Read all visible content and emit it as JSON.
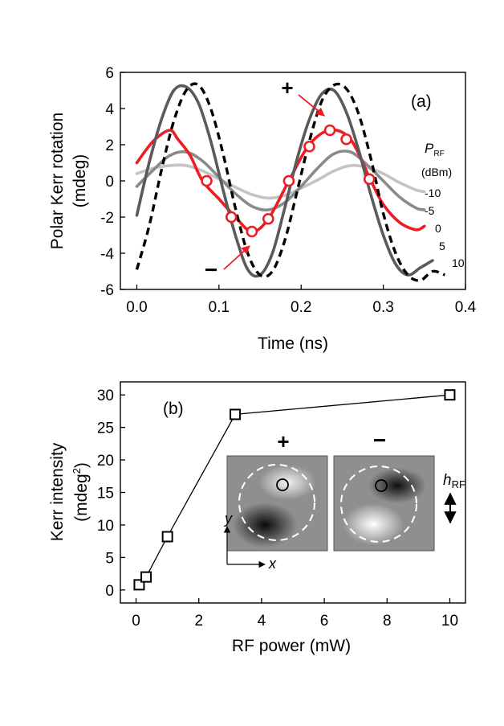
{
  "chart_data": [
    {
      "type": "line",
      "panel_label": "(a)",
      "xlabel": "Time (ns)",
      "ylabel_line1": "Polar Kerr rotation",
      "ylabel_line2": "(mdeg)",
      "xlim": [
        -0.02,
        0.4
      ],
      "ylim": [
        -6,
        6
      ],
      "xticks": [
        0.0,
        0.1,
        0.2,
        0.3,
        0.4
      ],
      "xtick_labels": [
        "0.0",
        "0.1",
        "0.2",
        "0.3",
        "0.4"
      ],
      "yticks": [
        -6,
        -4,
        -2,
        0,
        2,
        4,
        6
      ],
      "ytick_labels": [
        "-6",
        "-4",
        "-2",
        "0",
        "2",
        "4",
        "6"
      ],
      "legend_title_main": "P",
      "legend_title_sub": "RF",
      "legend_unit": "(dBm)",
      "series": [
        {
          "name": "-10",
          "color": "#c4c4c4",
          "style": "solid",
          "x": [
            0.0,
            0.02,
            0.04,
            0.06,
            0.08,
            0.1,
            0.12,
            0.14,
            0.16,
            0.18,
            0.2,
            0.22,
            0.24,
            0.26,
            0.28,
            0.3,
            0.32,
            0.34,
            0.35
          ],
          "y": [
            0.4,
            0.7,
            0.85,
            0.85,
            0.55,
            0.1,
            -0.35,
            -0.75,
            -0.95,
            -0.8,
            -0.4,
            0.05,
            0.55,
            0.85,
            0.75,
            0.4,
            -0.1,
            -0.5,
            -0.6
          ]
        },
        {
          "name": "-5",
          "color": "#8a8a8a",
          "style": "solid",
          "x": [
            0.0,
            0.02,
            0.04,
            0.06,
            0.08,
            0.1,
            0.12,
            0.14,
            0.16,
            0.18,
            0.2,
            0.22,
            0.24,
            0.26,
            0.28,
            0.3,
            0.32,
            0.34,
            0.35
          ],
          "y": [
            -0.3,
            0.6,
            1.4,
            1.6,
            1.1,
            0.2,
            -0.7,
            -1.4,
            -1.6,
            -1.2,
            -0.3,
            0.7,
            1.5,
            1.6,
            0.9,
            0.0,
            -0.9,
            -1.5,
            -1.6
          ]
        },
        {
          "name": "0",
          "color": "#ee1d23",
          "style": "solid",
          "markers": "open-circle",
          "x": [
            0.0,
            0.02,
            0.04,
            0.05,
            0.065,
            0.08,
            0.1,
            0.12,
            0.14,
            0.16,
            0.185,
            0.21,
            0.235,
            0.26,
            0.285,
            0.3,
            0.32,
            0.34,
            0.35
          ],
          "y": [
            1.0,
            2.2,
            2.8,
            2.3,
            1.4,
            0.0,
            -1.0,
            -2.0,
            -2.8,
            -2.1,
            0.0,
            2.0,
            2.8,
            2.3,
            0.0,
            -1.3,
            -2.3,
            -2.7,
            -2.5
          ],
          "marker_x": [
            0.085,
            0.115,
            0.14,
            0.16,
            0.185,
            0.21,
            0.235,
            0.255,
            0.283
          ],
          "marker_y": [
            0.0,
            -2.0,
            -2.8,
            -2.1,
            0.0,
            1.9,
            2.8,
            2.3,
            0.1
          ]
        },
        {
          "name": "5",
          "color": "#5a5a5a",
          "style": "solid",
          "x": [
            0.0,
            0.015,
            0.03,
            0.045,
            0.06,
            0.075,
            0.09,
            0.105,
            0.12,
            0.135,
            0.15,
            0.165,
            0.18,
            0.195,
            0.21,
            0.225,
            0.24,
            0.255,
            0.27,
            0.285,
            0.3,
            0.315,
            0.33,
            0.345,
            0.36
          ],
          "y": [
            -1.9,
            1.0,
            3.4,
            5.0,
            5.2,
            4.3,
            2.2,
            -0.5,
            -3.0,
            -4.9,
            -5.2,
            -4.0,
            -1.5,
            1.2,
            3.4,
            4.8,
            5.0,
            3.8,
            1.7,
            -0.8,
            -3.0,
            -4.6,
            -5.2,
            -4.8,
            -4.4
          ]
        },
        {
          "name": "10",
          "color": "#000000",
          "style": "dashed",
          "x": [
            0.0,
            0.015,
            0.03,
            0.045,
            0.06,
            0.075,
            0.09,
            0.105,
            0.12,
            0.135,
            0.15,
            0.165,
            0.18,
            0.195,
            0.21,
            0.225,
            0.24,
            0.255,
            0.27,
            0.285,
            0.3,
            0.315,
            0.33,
            0.345,
            0.36,
            0.375
          ],
          "y": [
            -4.9,
            -2.5,
            0.6,
            3.3,
            5.0,
            5.3,
            4.0,
            1.5,
            -1.5,
            -4.0,
            -5.2,
            -5.0,
            -3.3,
            -0.6,
            2.2,
            4.4,
            5.3,
            5.1,
            3.7,
            1.2,
            -1.8,
            -4.0,
            -5.2,
            -5.5,
            -5.0,
            -5.2
          ]
        }
      ],
      "annotations": [
        {
          "text": "+",
          "x": 0.224,
          "y": 5.1
        },
        {
          "text": "−",
          "x": 0.097,
          "y": -5.0
        }
      ],
      "arrows": [
        {
          "from": [
            0.247,
            5.0
          ],
          "to": [
            0.284,
            3.6
          ],
          "color": "#ee1d23"
        },
        {
          "from": [
            0.085,
            -4.6
          ],
          "to": [
            0.125,
            -3.3
          ],
          "color": "#ee1d23"
        }
      ]
    },
    {
      "type": "line",
      "panel_label": "(b)",
      "xlabel": "RF power (mW)",
      "ylabel_line1": "Kerr intensity",
      "ylabel_line2_main": "(mdeg",
      "ylabel_line2_sup": "2",
      "ylabel_line2_end": ")",
      "xlim": [
        -0.5,
        10.5
      ],
      "ylim": [
        -2,
        32
      ],
      "xticks": [
        0,
        2,
        4,
        6,
        8,
        10
      ],
      "xtick_labels": [
        "0",
        "2",
        "4",
        "6",
        "8",
        "10"
      ],
      "yticks": [
        0,
        5,
        10,
        15,
        20,
        25,
        30
      ],
      "ytick_labels": [
        "0",
        "5",
        "10",
        "15",
        "20",
        "25",
        "30"
      ],
      "series": [
        {
          "name": "Kerr intensity",
          "color": "#000000",
          "markers": "open-square",
          "x": [
            0.1,
            0.32,
            1.0,
            3.16,
            10.0
          ],
          "y": [
            0.8,
            2.0,
            8.2,
            27.0,
            30.0
          ]
        }
      ],
      "inset": {
        "plus_label": "+",
        "minus_label": "−",
        "axis_x": "x",
        "axis_y": "y",
        "field_main": "h",
        "field_sub": "RF"
      }
    }
  ]
}
